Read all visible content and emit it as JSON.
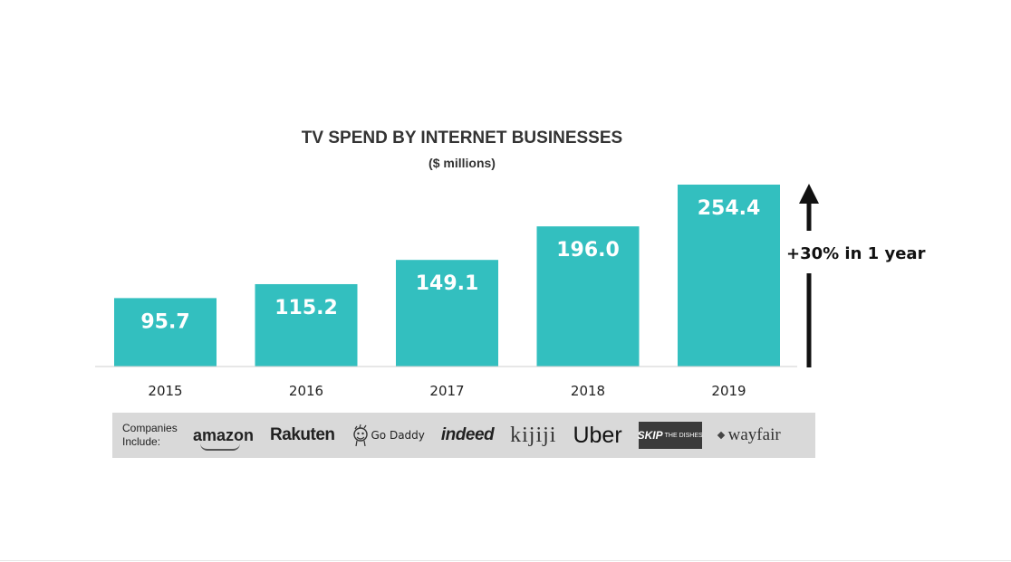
{
  "chart_data": {
    "type": "bar",
    "title": "TV SPEND BY INTERNET BUSINESSES",
    "subtitle": "($ millions)",
    "categories": [
      "2015",
      "2016",
      "2017",
      "2018",
      "2019"
    ],
    "values": [
      95.7,
      115.2,
      149.1,
      196.0,
      254.4
    ],
    "value_labels": [
      "95.7",
      "115.2",
      "149.1",
      "196.0",
      "254.4"
    ],
    "xlabel": "",
    "ylabel": "",
    "ylim": [
      0,
      260
    ],
    "bar_color": "#33bfbf",
    "annotation": "+30% in 1 year",
    "grid": false
  },
  "companies": {
    "label_line1": "Companies",
    "label_line2": "Include:",
    "logos": [
      {
        "name": "amazon",
        "text": "amazon"
      },
      {
        "name": "rakuten",
        "text": "Rakuten"
      },
      {
        "name": "godaddy",
        "text": "Go Daddy"
      },
      {
        "name": "indeed",
        "text": "indeed"
      },
      {
        "name": "kijiji",
        "text": "kijiji"
      },
      {
        "name": "uber",
        "text": "Uber"
      },
      {
        "name": "skip",
        "text": "SKIP",
        "small": "THE DISHES"
      },
      {
        "name": "wayfair",
        "text": "wayfair"
      }
    ]
  }
}
